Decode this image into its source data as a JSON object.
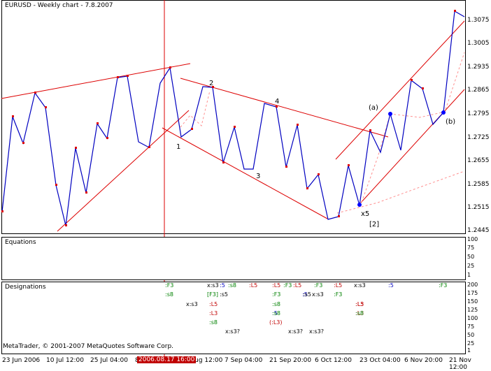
{
  "chart_title": "EURUSD - Weekly chart - 7.8.2007",
  "price_axis": [
    "1.3075",
    "1.3005",
    "1.2935",
    "1.2865",
    "1.2795",
    "1.2725",
    "1.2655",
    "1.2585",
    "1.2515",
    "1.2445"
  ],
  "time_axis": [
    "23 Jun 2006",
    "10 Jul 12:00",
    "25 Jul 04:00",
    "8",
    "Aug 12:00",
    "7 Sep 04:00",
    "21 Sep 20:00",
    "6 Oct 12:00",
    "23 Oct 04:00",
    "6 Nov 20:00",
    "21 Nov 12:00"
  ],
  "cursor_time": "2006.08.17 16:00",
  "wave_labels": {
    "w1": "1",
    "w2": "2",
    "w3": "3",
    "w4": "4",
    "wx5": "x5",
    "wbr": "[2]",
    "wa": "(a)",
    "wb": "(b)"
  },
  "equations": {
    "title": "Equations",
    "scale": [
      "100",
      "75",
      "50",
      "25",
      "1"
    ]
  },
  "designations": {
    "title": "Designations",
    "scale": [
      "200",
      "175",
      "150",
      "125",
      "100",
      "75",
      "50",
      "25",
      "1"
    ],
    "items": [
      {
        "t": ":F3",
        "c": "#008000"
      },
      {
        "t": ":s8",
        "c": "#008000"
      },
      {
        "t": "x:s3",
        "c": "#000000"
      },
      {
        "t": "x:s3",
        "c": "#000000"
      },
      {
        "t": ":5",
        "c": "#0000c0"
      },
      {
        "t": ":s8",
        "c": "#008000"
      },
      {
        "t": "[F3]",
        "c": "#008000"
      },
      {
        "t": ":s5",
        "c": "#000000"
      },
      {
        "t": ":L5",
        "c": "#c00000"
      },
      {
        "t": ":L5",
        "c": "#c00000"
      },
      {
        "t": ":L3",
        "c": "#c00000"
      },
      {
        "t": ":s8",
        "c": "#008000"
      },
      {
        "t": "x:s3?",
        "c": "#000000"
      },
      {
        "t": ":L5",
        "c": "#c00000"
      },
      {
        "t": ":F3",
        "c": "#008000"
      },
      {
        "t": ":F3",
        "c": "#008000"
      },
      {
        "t": ":s8",
        "c": "#008000"
      },
      {
        "t": ":5",
        "c": "#0000c0"
      },
      {
        "t": ":s8",
        "c": "#008000"
      },
      {
        "t": "(:L3)",
        "c": "#c00000"
      },
      {
        "t": ":L5",
        "c": "#c00000"
      },
      {
        "t": ":5",
        "c": "#0000c0"
      },
      {
        "t": ":F3",
        "c": "#008000"
      },
      {
        "t": ":s5",
        "c": "#000000"
      },
      {
        "t": "x:s3",
        "c": "#000000"
      },
      {
        "t": "x:s3?",
        "c": "#000000"
      },
      {
        "t": "x:s3?",
        "c": "#000000"
      },
      {
        "t": ":L5",
        "c": "#c00000"
      },
      {
        "t": ":F3",
        "c": "#008000"
      },
      {
        "t": ":L5",
        "c": "#c00000"
      },
      {
        "t": "x:s3",
        "c": "#000000"
      },
      {
        "t": ":L3",
        "c": "#c00000"
      },
      {
        "t": ":L3",
        "c": "#c00000"
      },
      {
        "t": ":s8",
        "c": "#008000"
      },
      {
        "t": ":5",
        "c": "#0000c0"
      },
      {
        "t": ":F3",
        "c": "#008000"
      }
    ]
  },
  "copyright": "MetaTrader, © 2001-2007 MetaQuotes Software Corp."
}
